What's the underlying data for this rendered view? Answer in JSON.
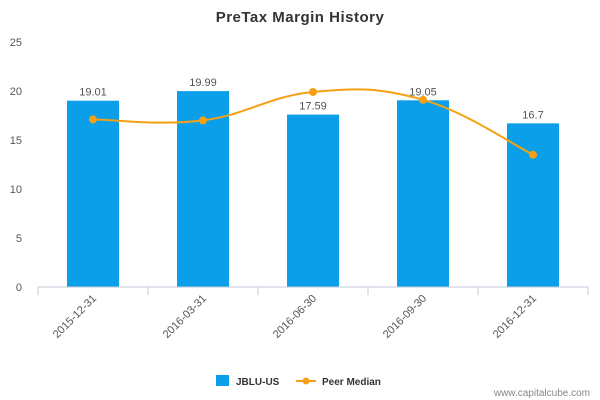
{
  "chart_data": {
    "type": "bar",
    "title": "PreTax Margin History",
    "categories": [
      "2015-12-31",
      "2016-03-31",
      "2016-06-30",
      "2016-09-30",
      "2016-12-31"
    ],
    "series": [
      {
        "name": "JBLU-US",
        "type": "bar",
        "values": [
          19.01,
          19.99,
          17.59,
          19.05,
          16.7
        ],
        "labels": [
          "19.01",
          "19.99",
          "17.59",
          "19.05",
          "16.7"
        ],
        "color": "#0a9fe8"
      },
      {
        "name": "Peer Median",
        "type": "line",
        "values": [
          17.1,
          17.0,
          19.9,
          19.1,
          13.5
        ],
        "color": "#f5a015"
      }
    ],
    "ylim": [
      0,
      25
    ],
    "yticks": [
      "0",
      "5",
      "10",
      "15",
      "20",
      "25"
    ],
    "grid": false,
    "legend": "bottom-center"
  },
  "credit": "www.capitalcube.com"
}
